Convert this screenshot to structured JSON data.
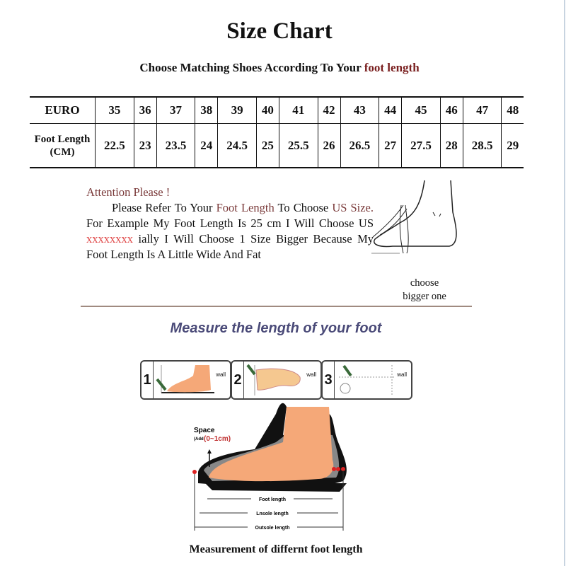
{
  "title": "Size Chart",
  "subtitle": {
    "text": "Choose Matching Shoes According To Your ",
    "accent": "foot length"
  },
  "table": {
    "row_headers": [
      "EURO",
      "Foot Length (CM)"
    ],
    "euro": [
      "35",
      "36",
      "37",
      "38",
      "39",
      "40",
      "41",
      "42",
      "43",
      "44",
      "45",
      "46",
      "47",
      "48"
    ],
    "foot_length_cm": [
      "22.5",
      "23",
      "23.5",
      "24",
      "24.5",
      "25",
      "25.5",
      "26",
      "26.5",
      "27",
      "27.5",
      "28",
      "28.5",
      "29"
    ]
  },
  "note": {
    "heading": "Attention Please !",
    "p1": "Please Refer To Your ",
    "foot_length": "Foot Length",
    "p2": " To Choose ",
    "us_size": "US Size.",
    "p3": " For Example My Foot Length Is 25 cm I Will Choose US ",
    "redacted": "xxxxxxxx",
    "p4": " ially I Will Choose 1 Size Bigger Because My Foot Length Is A Little Wide And Fat"
  },
  "choose_label": "choose bigger one",
  "measure_title": "Measure the length of your foot",
  "steps": [
    {
      "num": "1",
      "wall": "wall"
    },
    {
      "num": "2",
      "wall": "wall"
    },
    {
      "num": "3",
      "wall": "wall"
    }
  ],
  "diagram": {
    "space": "Space",
    "add": "(Add",
    "range": "(0~1cm)",
    "foot_length": "Foot length",
    "insole_length": "Lnsole length",
    "outsole_length": "Outsole length"
  },
  "caption": "Measurement of differnt foot length",
  "colors": {
    "accent": "#7a2020",
    "measure_title": "#4a4a78",
    "skin": "#f5a878",
    "redacted": "#e04848"
  }
}
